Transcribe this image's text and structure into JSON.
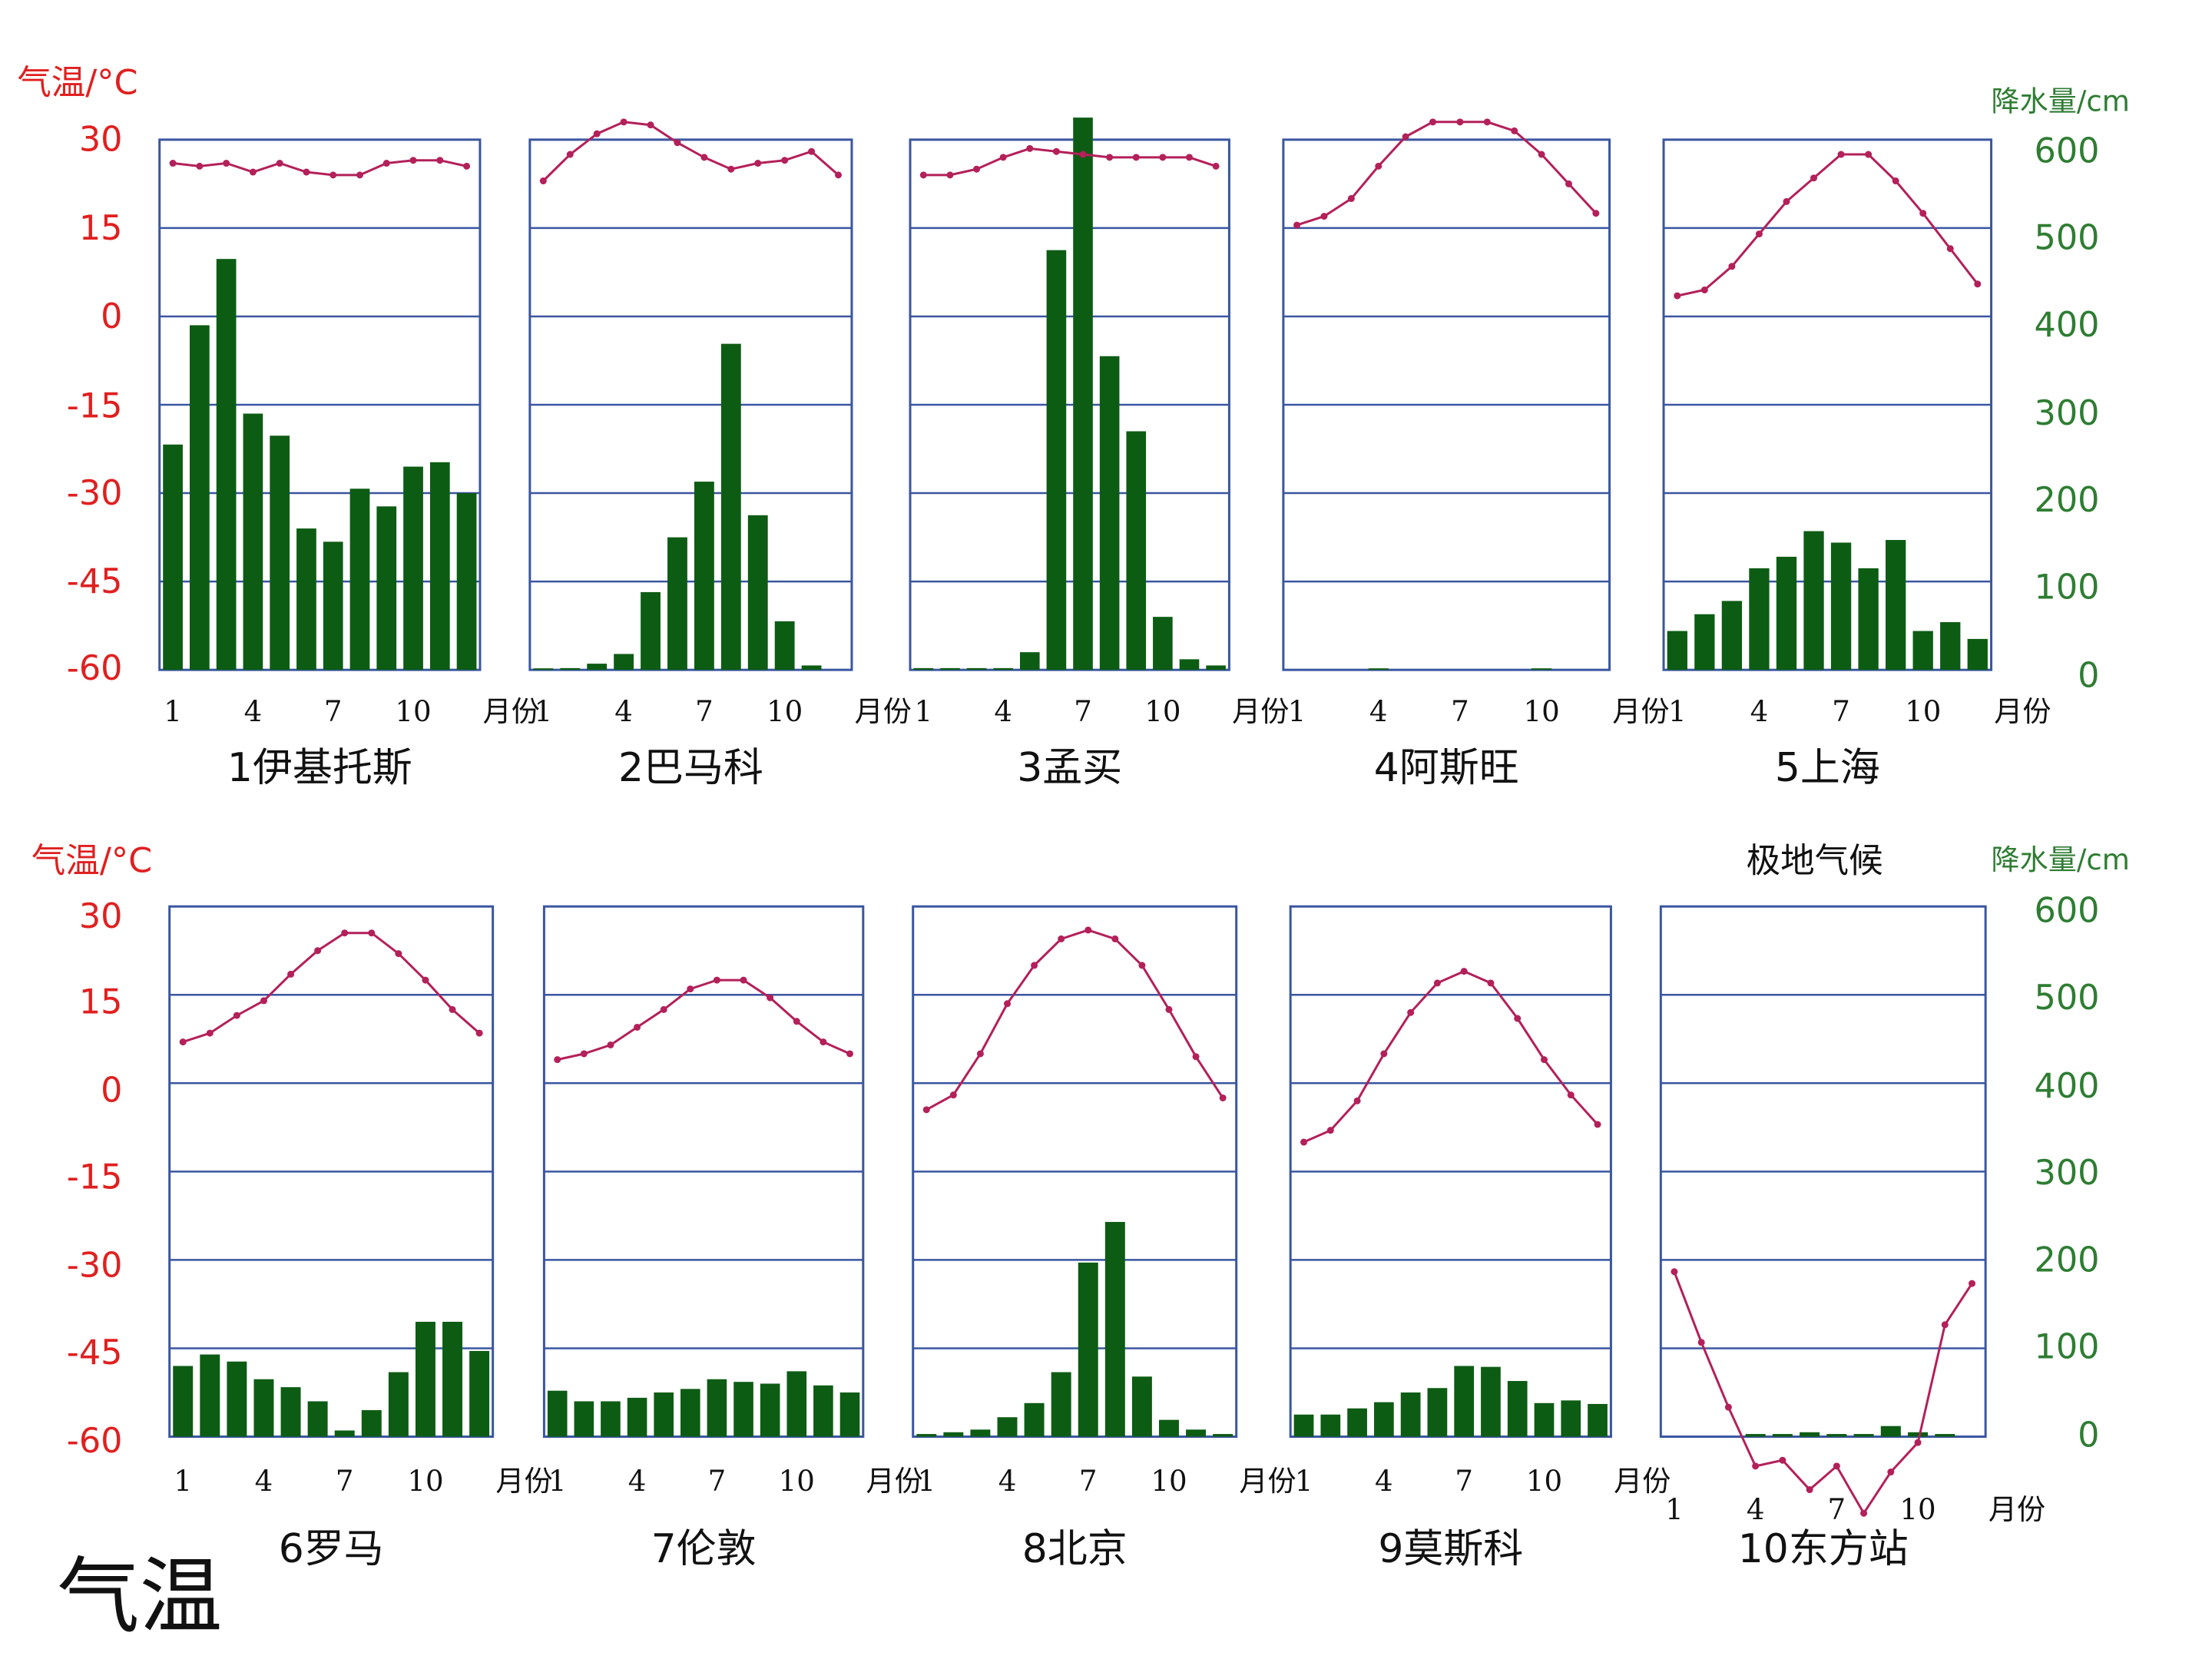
{
  "colors": {
    "temp_axis": "#e02020",
    "precip_axis": "#2e7d32",
    "bar": "#0d5c14",
    "line": "#b3205a",
    "frame": "#3a56a0",
    "text": "#111111"
  },
  "labels": {
    "temp_unit": "气温/°C",
    "precip_unit": "降水量/cm",
    "month_unit": "月份",
    "polar_note": "极地气候",
    "footer": "气温"
  },
  "axes": {
    "temp_ticks": [
      "30",
      "15",
      "0",
      "-15",
      "-30",
      "-45",
      "-60"
    ],
    "precip_ticks": [
      "600",
      "500",
      "400",
      "300",
      "200",
      "100",
      "0"
    ],
    "month_ticks": [
      "1",
      "4",
      "7",
      "10"
    ],
    "temp_range": [
      -60,
      30
    ],
    "precip_range": [
      0,
      600
    ]
  },
  "chart_data": [
    {
      "type": "bar+line",
      "title": "1伊基托斯",
      "months": [
        1,
        2,
        3,
        4,
        5,
        6,
        7,
        8,
        9,
        10,
        11,
        12
      ],
      "precip_cm": [
        255,
        390,
        465,
        290,
        265,
        160,
        145,
        205,
        185,
        230,
        235,
        200
      ],
      "temp_c": [
        26,
        25.5,
        26,
        24.5,
        26,
        24.5,
        24,
        24,
        26,
        26.5,
        26.5,
        25.5
      ]
    },
    {
      "type": "bar+line",
      "title": "2巴马科",
      "months": [
        1,
        2,
        3,
        4,
        5,
        6,
        7,
        8,
        9,
        10,
        11,
        12
      ],
      "precip_cm": [
        1,
        2,
        7,
        18,
        88,
        150,
        213,
        369,
        175,
        55,
        5,
        0
      ],
      "temp_c": [
        23,
        27.5,
        31,
        33,
        32.5,
        29.5,
        27,
        25,
        26,
        26.5,
        28,
        24
      ]
    },
    {
      "type": "bar+line",
      "title": "3孟买",
      "months": [
        1,
        2,
        3,
        4,
        5,
        6,
        7,
        8,
        9,
        10,
        11,
        12
      ],
      "precip_cm": [
        2,
        2,
        2,
        2,
        20,
        475,
        625,
        355,
        270,
        60,
        12,
        5
      ],
      "temp_c": [
        24,
        24,
        25,
        27,
        28.5,
        28,
        27.5,
        27,
        27,
        27,
        27,
        25.5
      ]
    },
    {
      "type": "bar+line",
      "title": "4阿斯旺",
      "months": [
        1,
        2,
        3,
        4,
        5,
        6,
        7,
        8,
        9,
        10,
        11,
        12
      ],
      "precip_cm": [
        0,
        0,
        0,
        0.5,
        0,
        0,
        0,
        0,
        0,
        0.2,
        0,
        0
      ],
      "temp_c": [
        15.5,
        17,
        20,
        25.5,
        30.5,
        33,
        33,
        33,
        31.5,
        27.5,
        22.5,
        17.5
      ]
    },
    {
      "type": "bar+line",
      "title": "5上海",
      "months": [
        1,
        2,
        3,
        4,
        5,
        6,
        7,
        8,
        9,
        10,
        11,
        12
      ],
      "precip_cm": [
        44,
        63,
        78,
        115,
        128,
        157,
        144,
        115,
        147,
        44,
        54,
        35
      ],
      "temp_c": [
        3.5,
        4.5,
        8.5,
        14,
        19.5,
        23.5,
        27.5,
        27.5,
        23,
        17.5,
        11.5,
        5.5
      ]
    },
    {
      "type": "bar+line",
      "title": "6罗马",
      "months": [
        1,
        2,
        3,
        4,
        5,
        6,
        7,
        8,
        9,
        10,
        11,
        12
      ],
      "precip_cm": [
        80,
        93,
        85,
        65,
        56,
        40,
        7,
        30,
        73,
        130,
        130,
        97
      ],
      "temp_c": [
        7,
        8.5,
        11.5,
        14,
        18.5,
        22.5,
        25.5,
        25.5,
        22,
        17.5,
        12.5,
        8.5
      ]
    },
    {
      "type": "bar+line",
      "title": "7伦敦",
      "months": [
        1,
        2,
        3,
        4,
        5,
        6,
        7,
        8,
        9,
        10,
        11,
        12
      ],
      "precip_cm": [
        52,
        40,
        40,
        44,
        50,
        54,
        65,
        62,
        60,
        74,
        58,
        50
      ],
      "temp_c": [
        4,
        5,
        6.5,
        9.5,
        12.5,
        16,
        17.5,
        17.5,
        14.5,
        10.5,
        7,
        5
      ]
    },
    {
      "type": "bar+line",
      "title": "8北京",
      "months": [
        1,
        2,
        3,
        4,
        5,
        6,
        7,
        8,
        9,
        10,
        11,
        12
      ],
      "precip_cm": [
        3,
        5,
        8,
        22,
        38,
        73,
        197,
        243,
        68,
        19,
        8,
        3
      ],
      "temp_c": [
        -4.5,
        -2,
        5,
        13.5,
        20,
        24.5,
        26,
        24.5,
        20,
        12.5,
        4.5,
        -2.5
      ]
    },
    {
      "type": "bar+line",
      "title": "9莫斯科",
      "months": [
        1,
        2,
        3,
        4,
        5,
        6,
        7,
        8,
        9,
        10,
        11,
        12
      ],
      "precip_cm": [
        25,
        25,
        32,
        39,
        50,
        55,
        80,
        79,
        63,
        38,
        41,
        37
      ],
      "temp_c": [
        -10,
        -8,
        -3,
        5,
        12,
        17,
        19,
        17,
        11,
        4,
        -2,
        -7
      ]
    },
    {
      "type": "bar+line",
      "title": "10东方站",
      "months": [
        1,
        2,
        3,
        4,
        5,
        6,
        7,
        8,
        9,
        10,
        11,
        12
      ],
      "precip_cm": [
        0,
        0,
        0,
        3,
        3,
        5,
        3,
        3,
        12,
        5,
        3,
        0
      ],
      "temp_c": [
        -32,
        -44,
        -55,
        -65,
        -64,
        -69,
        -65,
        -73,
        -66,
        -61,
        -41,
        -34
      ]
    }
  ]
}
